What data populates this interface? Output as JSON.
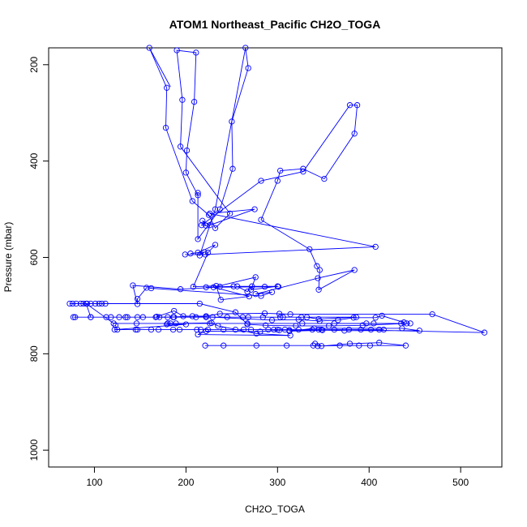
{
  "chart_data": {
    "type": "line",
    "title": "ATOM1 Northeast_Pacific CH2O_TOGA",
    "xlabel": "CH2O_TOGA",
    "ylabel": "Pressure (mbar)",
    "xlim": [
      50,
      545
    ],
    "ylim": [
      1035,
      165
    ],
    "y_reversed": true,
    "grid": false,
    "legend": "none",
    "x_ticks": [
      100,
      200,
      300,
      400,
      500
    ],
    "y_ticks": [
      200,
      400,
      600,
      800,
      1000
    ],
    "series": [
      {
        "color": "#0000ff",
        "marker": "open-circle",
        "points": [
          [
            160,
            165
          ],
          [
            179,
            248
          ],
          [
            178,
            331
          ],
          [
            207,
            483
          ],
          [
            225,
            512
          ],
          [
            232,
            539
          ],
          [
            248,
            509
          ],
          [
            194,
            370
          ],
          [
            196,
            273
          ],
          [
            190,
            170
          ],
          [
            211,
            175
          ],
          [
            209,
            277
          ],
          [
            201,
            378
          ],
          [
            200,
            424
          ],
          [
            213,
            471
          ],
          [
            213,
            466
          ],
          [
            213,
            562
          ],
          [
            237,
            500
          ],
          [
            251,
            416
          ],
          [
            250,
            318
          ],
          [
            268,
            207
          ],
          [
            265,
            165
          ],
          [
            232,
            500
          ],
          [
            215,
            596
          ],
          [
            220,
            589
          ],
          [
            205,
            592
          ],
          [
            213,
            590
          ],
          [
            232,
            574
          ],
          [
            224,
            590
          ],
          [
            208,
            661
          ],
          [
            233,
            659
          ],
          [
            238,
            688
          ],
          [
            269,
            681
          ],
          [
            230,
            662
          ],
          [
            276,
            641
          ],
          [
            271,
            667
          ],
          [
            300,
            660
          ],
          [
            256,
            660
          ],
          [
            267,
            671
          ],
          [
            272,
            660
          ],
          [
            286,
            661
          ],
          [
            301,
            661
          ],
          [
            222,
            662
          ],
          [
            237,
            661
          ],
          [
            252,
            660
          ],
          [
            194,
            666
          ],
          [
            142,
            658
          ],
          [
            147,
            697
          ],
          [
            147,
            686
          ],
          [
            157,
            663
          ],
          [
            162,
            664
          ],
          [
            282,
            680
          ],
          [
            294,
            672
          ],
          [
            276,
            676
          ],
          [
            344,
            643
          ],
          [
            384,
            626
          ],
          [
            345,
            667
          ],
          [
            346,
            626
          ],
          [
            343,
            618
          ],
          [
            335,
            583
          ],
          [
            282,
            522
          ],
          [
            300,
            441
          ],
          [
            303,
            420
          ],
          [
            328,
            416
          ],
          [
            351,
            437
          ],
          [
            384,
            343
          ],
          [
            387,
            284
          ],
          [
            379,
            284
          ],
          [
            328,
            422
          ],
          [
            282,
            441
          ],
          [
            217,
            533
          ],
          [
            222,
            534
          ],
          [
            218,
            524
          ],
          [
            226,
            533
          ],
          [
            275,
            500
          ],
          [
            226,
            509
          ],
          [
            407,
            578
          ],
          [
            221,
            594
          ],
          [
            199,
            594
          ]
        ]
      },
      {
        "color": "#0000ff",
        "marker": "open-circle",
        "points": [
          [
            73,
            696
          ],
          [
            76,
            696
          ],
          [
            80,
            696
          ],
          [
            85,
            696
          ],
          [
            88,
            696
          ],
          [
            92,
            696
          ],
          [
            96,
            696
          ],
          [
            101,
            696
          ],
          [
            105,
            696
          ],
          [
            108,
            696
          ],
          [
            112,
            696
          ],
          [
            215,
            696
          ],
          [
            254,
            714
          ],
          [
            267,
            739
          ],
          [
            287,
            741
          ],
          [
            320,
            742
          ],
          [
            356,
            742
          ],
          [
            393,
            741
          ],
          [
            441,
            737
          ],
          [
            445,
            737
          ],
          [
            397,
            737
          ],
          [
            327,
            737
          ],
          [
            267,
            737
          ],
          [
            226,
            737
          ],
          [
            183,
            737
          ],
          [
            146,
            737
          ],
          [
            121,
            737
          ],
          [
            91,
            696
          ],
          [
            96,
            724
          ],
          [
            118,
            724
          ],
          [
            127,
            724
          ],
          [
            134,
            724
          ],
          [
            147,
            724
          ],
          [
            153,
            724
          ],
          [
            167,
            724
          ],
          [
            186,
            724
          ],
          [
            211,
            724
          ],
          [
            229,
            724
          ],
          [
            245,
            724
          ],
          [
            262,
            724
          ],
          [
            284,
            724
          ],
          [
            306,
            724
          ],
          [
            326,
            724
          ],
          [
            386,
            724
          ],
          [
            345,
            728
          ],
          [
            332,
            724
          ],
          [
            303,
            724
          ],
          [
            268,
            724
          ],
          [
            222,
            724
          ],
          [
            187,
            724
          ],
          [
            136,
            724
          ],
          [
            113,
            724
          ],
          [
            77,
            724
          ],
          [
            79,
            724
          ],
          [
            96,
            724
          ]
        ]
      },
      {
        "color": "#0000ff",
        "marker": "open-circle",
        "points": [
          [
            123,
            741
          ],
          [
            125,
            750
          ],
          [
            147,
            750
          ],
          [
            162,
            750
          ],
          [
            186,
            750
          ],
          [
            212,
            750
          ],
          [
            224,
            750
          ],
          [
            254,
            750
          ],
          [
            271,
            750
          ],
          [
            290,
            750
          ],
          [
            308,
            750
          ],
          [
            323,
            750
          ],
          [
            345,
            750
          ],
          [
            362,
            750
          ],
          [
            391,
            750
          ],
          [
            402,
            750
          ],
          [
            411,
            750
          ],
          [
            416,
            750
          ],
          [
            348,
            750
          ],
          [
            338,
            750
          ],
          [
            300,
            750
          ],
          [
            296,
            750
          ],
          [
            263,
            750
          ],
          [
            241,
            750
          ],
          [
            216,
            750
          ],
          [
            193,
            750
          ],
          [
            170,
            750
          ],
          [
            145,
            750
          ],
          [
            122,
            750
          ],
          [
            200,
            739
          ],
          [
            179,
            739
          ],
          [
            180,
            737
          ],
          [
            189,
            737
          ],
          [
            228,
            736
          ],
          [
            235,
            742
          ],
          [
            277,
            758
          ],
          [
            314,
            762
          ],
          [
            213,
            760
          ],
          [
            222,
            753
          ],
          [
            281,
            754
          ],
          [
            302,
            751
          ],
          [
            313,
            751
          ],
          [
            349,
            751
          ],
          [
            373,
            752
          ],
          [
            455,
            752
          ],
          [
            436,
            747
          ],
          [
            340,
            747
          ],
          [
            313,
            753
          ],
          [
            378,
            750
          ],
          [
            526,
            756
          ],
          [
            469,
            718
          ],
          [
            314,
            718
          ],
          [
            302,
            717
          ],
          [
            286,
            716
          ],
          [
            237,
            717
          ],
          [
            222,
            722
          ],
          [
            197,
            722
          ],
          [
            187,
            711
          ],
          [
            168,
            723
          ],
          [
            171,
            724
          ],
          [
            180,
            724
          ],
          [
            207,
            722
          ],
          [
            294,
            730
          ],
          [
            323,
            729
          ],
          [
            346,
            732
          ],
          [
            366,
            730
          ],
          [
            383,
            725
          ],
          [
            407,
            725
          ],
          [
            414,
            721
          ],
          [
            438,
            735
          ],
          [
            435,
            737
          ],
          [
            405,
            737
          ],
          [
            362,
            737
          ]
        ]
      },
      {
        "color": "#0000ff",
        "marker": "open-circle",
        "points": [
          [
            221,
            783
          ],
          [
            241,
            783
          ],
          [
            277,
            783
          ],
          [
            310,
            783
          ],
          [
            339,
            783
          ],
          [
            344,
            784
          ],
          [
            368,
            783
          ],
          [
            389,
            783
          ],
          [
            401,
            783
          ],
          [
            440,
            783
          ],
          [
            411,
            777
          ],
          [
            379,
            779
          ],
          [
            348,
            784
          ],
          [
            341,
            779
          ]
        ]
      },
      {
        "color": "#0000ff",
        "marker": "none",
        "points": [
          [
            160,
            165
          ],
          [
            183,
            246
          ]
        ]
      }
    ]
  }
}
